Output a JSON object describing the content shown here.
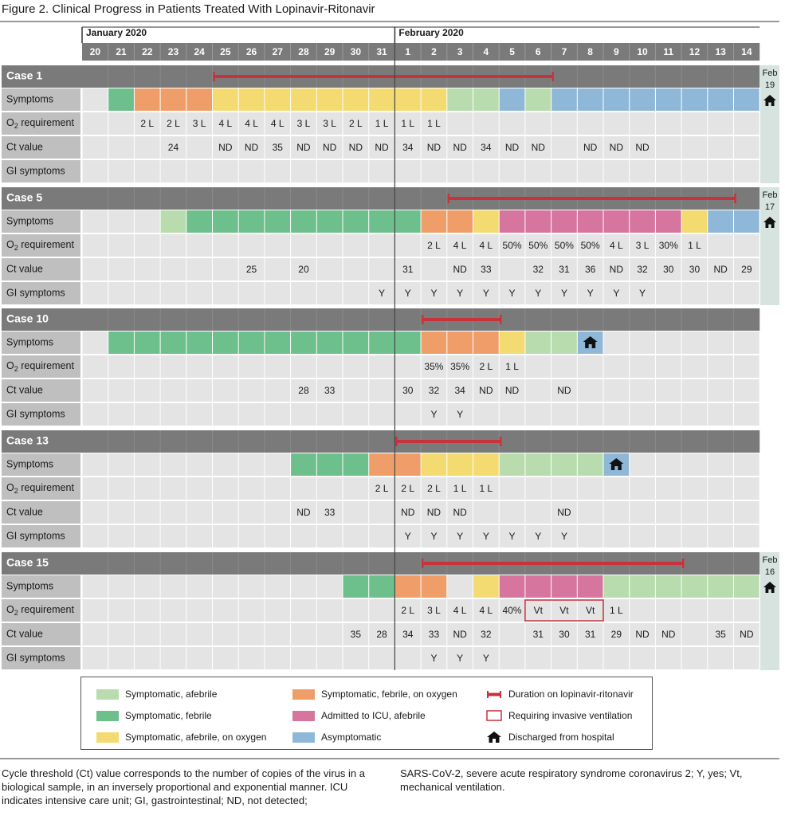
{
  "title": "Figure 2. Clinical Progress in Patients Treated With Lopinavir-Ritonavir",
  "colors": {
    "asym_afebrile": "#b8dcae",
    "sym_febrile": "#6dbf8b",
    "sym_afebrile_o2": "#f3da71",
    "sym_febrile_o2": "#ef9e6a",
    "icu": "#d6769e",
    "asymptomatic": "#8fb8d8",
    "header": "#7a7a7a",
    "label_bg": "#bfbfbf",
    "cell_bg": "#e4e4e4",
    "duration": "#c8323a"
  },
  "chart_data": {
    "type": "table",
    "months": [
      {
        "label": "January 2020",
        "start_index": 0
      },
      {
        "label": "February 2020",
        "start_index": 12
      }
    ],
    "days": [
      "20",
      "21",
      "22",
      "23",
      "24",
      "25",
      "26",
      "27",
      "28",
      "29",
      "30",
      "31",
      "1",
      "2",
      "3",
      "4",
      "5",
      "6",
      "7",
      "8",
      "9",
      "10",
      "11",
      "12",
      "13",
      "14"
    ],
    "row_labels": [
      "Symptoms",
      "O2 requirement",
      "Ct value",
      "GI symptoms"
    ],
    "cases": [
      {
        "name": "Case 1",
        "discharge": {
          "month": "Feb",
          "day": "19"
        },
        "duration": [
          5,
          18
        ],
        "symptoms": [
          null,
          "sym_febrile",
          "sym_febrile_o2",
          "sym_febrile_o2",
          "sym_febrile_o2",
          "sym_afebrile_o2",
          "sym_afebrile_o2",
          "sym_afebrile_o2",
          "sym_afebrile_o2",
          "sym_afebrile_o2",
          "sym_afebrile_o2",
          "sym_afebrile_o2",
          "sym_afebrile_o2",
          "sym_afebrile_o2",
          "asym_afebrile",
          "asym_afebrile",
          "asymptomatic",
          "asym_afebrile",
          "asymptomatic",
          "asymptomatic",
          "asymptomatic",
          "asymptomatic",
          "asymptomatic",
          "asymptomatic",
          "asymptomatic",
          "asymptomatic"
        ],
        "o2": [
          "",
          "",
          "2 L",
          "2 L",
          "3 L",
          "4 L",
          "4 L",
          "4 L",
          "3 L",
          "3 L",
          "2 L",
          "1 L",
          "1 L",
          "1 L",
          "",
          "",
          "",
          "",
          "",
          "",
          "",
          "",
          "",
          "",
          "",
          ""
        ],
        "ct": [
          "",
          "",
          "",
          "24",
          "",
          "ND",
          "ND",
          "35",
          "ND",
          "ND",
          "ND",
          "ND",
          "34",
          "ND",
          "ND",
          "34",
          "ND",
          "ND",
          "",
          "ND",
          "ND",
          "ND",
          "",
          "",
          "",
          ""
        ],
        "gi": [
          "",
          "",
          "",
          "",
          "",
          "",
          "",
          "",
          "",
          "",
          "",
          "",
          "",
          "",
          "",
          "",
          "",
          "",
          "",
          "",
          "",
          "",
          "",
          "",
          "",
          ""
        ],
        "vent": [],
        "home_in_symptoms": null
      },
      {
        "name": "Case 5",
        "discharge": {
          "month": "Feb",
          "day": "17"
        },
        "duration": [
          14,
          25
        ],
        "symptoms": [
          null,
          null,
          null,
          "asym_afebrile",
          "sym_febrile",
          "sym_febrile",
          "sym_febrile",
          "sym_febrile",
          "sym_febrile",
          "sym_febrile",
          "sym_febrile",
          "sym_febrile",
          "sym_febrile",
          "sym_febrile_o2",
          "sym_febrile_o2",
          "sym_afebrile_o2",
          "icu",
          "icu",
          "icu",
          "icu",
          "icu",
          "icu",
          "icu",
          "sym_afebrile_o2",
          "asymptomatic",
          "asymptomatic"
        ],
        "o2": [
          "",
          "",
          "",
          "",
          "",
          "",
          "",
          "",
          "",
          "",
          "",
          "",
          "",
          "2 L",
          "4 L",
          "4 L",
          "50%",
          "50%",
          "50%",
          "50%",
          "4 L",
          "3 L",
          "30%",
          "1 L",
          "",
          ""
        ],
        "ct": [
          "",
          "",
          "",
          "",
          "",
          "",
          "25",
          "",
          "20",
          "",
          "",
          "",
          "31",
          "",
          "ND",
          "33",
          "",
          "32",
          "31",
          "36",
          "ND",
          "32",
          "30",
          "30",
          "ND",
          "29"
        ],
        "gi": [
          "",
          "",
          "",
          "",
          "",
          "",
          "",
          "",
          "",
          "",
          "",
          "Y",
          "Y",
          "Y",
          "Y",
          "Y",
          "Y",
          "Y",
          "Y",
          "Y",
          "Y",
          "Y",
          "",
          "",
          "",
          ""
        ],
        "vent": [],
        "home_in_symptoms": null
      },
      {
        "name": "Case 10",
        "discharge": null,
        "duration": [
          13,
          16
        ],
        "symptoms": [
          null,
          "sym_febrile",
          "sym_febrile",
          "sym_febrile",
          "sym_febrile",
          "sym_febrile",
          "sym_febrile",
          "sym_febrile",
          "sym_febrile",
          "sym_febrile",
          "sym_febrile",
          "sym_febrile",
          "sym_febrile",
          "sym_febrile_o2",
          "sym_febrile_o2",
          "sym_febrile_o2",
          "sym_afebrile_o2",
          "asym_afebrile",
          "asym_afebrile",
          "asymptomatic",
          null,
          null,
          null,
          null,
          null,
          null
        ],
        "o2": [
          "",
          "",
          "",
          "",
          "",
          "",
          "",
          "",
          "",
          "",
          "",
          "",
          "",
          "35%",
          "35%",
          "2 L",
          "1 L",
          "",
          "",
          "",
          "",
          "",
          "",
          "",
          "",
          ""
        ],
        "ct": [
          "",
          "",
          "",
          "",
          "",
          "",
          "",
          "",
          "28",
          "33",
          "",
          "",
          "30",
          "32",
          "34",
          "ND",
          "ND",
          "",
          "ND",
          "",
          "",
          "",
          "",
          "",
          "",
          ""
        ],
        "gi": [
          "",
          "",
          "",
          "",
          "",
          "",
          "",
          "",
          "",
          "",
          "",
          "",
          "",
          "Y",
          "Y",
          "",
          "",
          "",
          "",
          "",
          "",
          "",
          "",
          "",
          "",
          ""
        ],
        "vent": [],
        "home_in_symptoms": 19
      },
      {
        "name": "Case 13",
        "discharge": null,
        "duration": [
          12,
          16
        ],
        "symptoms": [
          null,
          null,
          null,
          null,
          null,
          null,
          null,
          null,
          "sym_febrile",
          "sym_febrile",
          "sym_febrile",
          "sym_febrile_o2",
          "sym_febrile_o2",
          "sym_afebrile_o2",
          "sym_afebrile_o2",
          "sym_afebrile_o2",
          "asym_afebrile",
          "asym_afebrile",
          "asym_afebrile",
          "asym_afebrile",
          "asymptomatic",
          null,
          null,
          null,
          null,
          null
        ],
        "o2": [
          "",
          "",
          "",
          "",
          "",
          "",
          "",
          "",
          "",
          "",
          "",
          "2 L",
          "2 L",
          "2 L",
          "1 L",
          "1 L",
          "",
          "",
          "",
          "",
          "",
          "",
          "",
          "",
          "",
          ""
        ],
        "ct": [
          "",
          "",
          "",
          "",
          "",
          "",
          "",
          "",
          "ND",
          "33",
          "",
          "",
          "ND",
          "ND",
          "ND",
          "",
          "",
          "",
          "ND",
          "",
          "",
          "",
          "",
          "",
          "",
          ""
        ],
        "gi": [
          "",
          "",
          "",
          "",
          "",
          "",
          "",
          "",
          "",
          "",
          "",
          "",
          "Y",
          "Y",
          "Y",
          "Y",
          "Y",
          "Y",
          "Y",
          "",
          "",
          "",
          "",
          "",
          "",
          ""
        ],
        "vent": [],
        "home_in_symptoms": 20
      },
      {
        "name": "Case 15",
        "discharge": {
          "month": "Feb",
          "day": "16"
        },
        "duration": [
          13,
          23
        ],
        "symptoms": [
          null,
          null,
          null,
          null,
          null,
          null,
          null,
          null,
          null,
          null,
          "sym_febrile",
          "sym_febrile",
          "sym_febrile_o2",
          "sym_febrile_o2",
          null,
          "sym_afebrile_o2",
          "icu",
          "icu",
          "icu",
          "icu",
          "asym_afebrile",
          "asym_afebrile",
          "asym_afebrile",
          "asym_afebrile",
          "asym_afebrile",
          "asym_afebrile"
        ],
        "o2": [
          "",
          "",
          "",
          "",
          "",
          "",
          "",
          "",
          "",
          "",
          "",
          "",
          "2 L",
          "3 L",
          "4 L",
          "4 L",
          "40%",
          "Vt",
          "Vt",
          "Vt",
          "1 L",
          "",
          "",
          "",
          "",
          ""
        ],
        "ct": [
          "",
          "",
          "",
          "",
          "",
          "",
          "",
          "",
          "",
          "",
          "35",
          "28",
          "34",
          "33",
          "ND",
          "32",
          "",
          "31",
          "30",
          "31",
          "29",
          "ND",
          "ND",
          "",
          "35",
          "ND"
        ],
        "gi": [
          "",
          "",
          "",
          "",
          "",
          "",
          "",
          "",
          "",
          "",
          "",
          "",
          "",
          "Y",
          "Y",
          "Y",
          "",
          "",
          "",
          "",
          "",
          "",
          "",
          "",
          "",
          ""
        ],
        "vent": [
          17,
          19
        ],
        "home_in_symptoms": null
      }
    ]
  },
  "legend": [
    {
      "key": "asym_afebrile",
      "label": "Symptomatic, afebrile"
    },
    {
      "key": "sym_febrile",
      "label": "Symptomatic, febrile"
    },
    {
      "key": "sym_afebrile_o2",
      "label": "Symptomatic, afebrile, on oxygen"
    },
    {
      "key": "sym_febrile_o2",
      "label": "Symptomatic, febrile, on oxygen"
    },
    {
      "key": "icu",
      "label": "Admitted to ICU, afebrile"
    },
    {
      "key": "asymptomatic",
      "label": "Asymptomatic"
    },
    {
      "key": "duration",
      "label": "Duration on lopinavir-ritonavir"
    },
    {
      "key": "vent",
      "label": "Requiring invasive ventilation"
    },
    {
      "key": "home",
      "label": "Discharged from hospital"
    }
  ],
  "notes": {
    "left": "Cycle threshold (Ct) value corresponds to the number of copies of the virus in a biological sample, in an inversely proportional and exponential manner. ICU indicates intensive care unit; GI, gastrointestinal; ND, not detected;",
    "right": "SARS-CoV-2, severe acute respiratory syndrome coronavirus 2; Y, yes; Vt, mechanical ventilation."
  }
}
